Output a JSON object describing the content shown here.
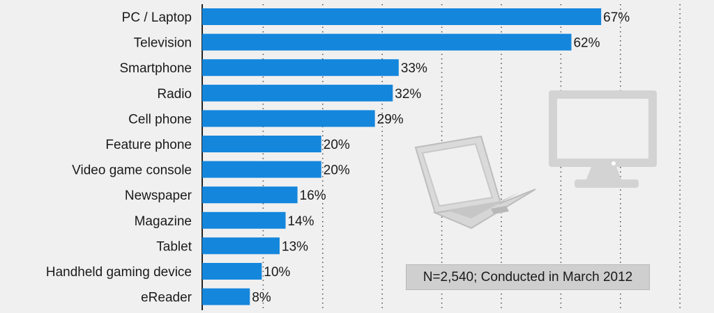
{
  "chart_data": {
    "type": "bar",
    "orientation": "horizontal",
    "categories": [
      "PC / Laptop",
      "Television",
      "Smartphone",
      "Radio",
      "Cell phone",
      "Feature phone",
      "Video game console",
      "Newspaper",
      "Magazine",
      "Tablet",
      "Handheld gaming device",
      "eReader"
    ],
    "values": [
      67,
      62,
      33,
      32,
      29,
      20,
      20,
      16,
      14,
      13,
      10,
      8
    ],
    "value_labels": [
      "67%",
      "62%",
      "33%",
      "32%",
      "29%",
      "20%",
      "20%",
      "16%",
      "14%",
      "13%",
      "10%",
      "8%"
    ],
    "xlim": [
      0,
      80
    ],
    "grid": true,
    "grid_style": "dotted vertical",
    "bar_color": "#1486dc"
  },
  "note": "N=2,540; Conducted in March 2012",
  "decorations": [
    "laptop-icon",
    "monitor-icon"
  ]
}
